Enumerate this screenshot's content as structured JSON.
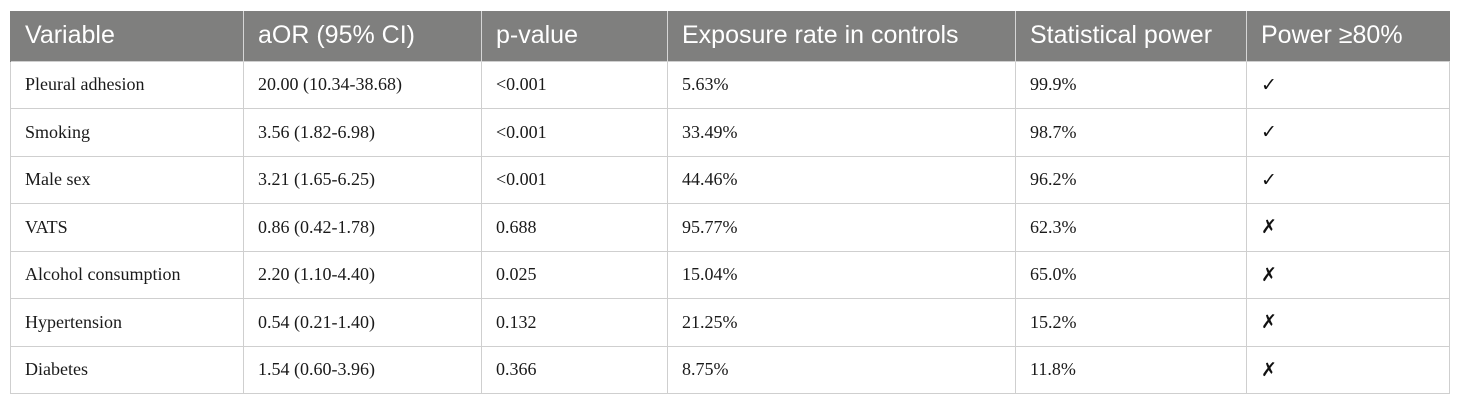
{
  "table": {
    "headers": [
      "Variable",
      "aOR (95% CI)",
      "p-value",
      "Exposure rate in controls",
      "Statistical power",
      "Power ≥80%"
    ],
    "rows": [
      [
        "Pleural adhesion",
        "20.00 (10.34-38.68)",
        "<0.001",
        "5.63%",
        "99.9%",
        "✓"
      ],
      [
        "Smoking",
        "3.56 (1.82-6.98)",
        "<0.001",
        "33.49%",
        "98.7%",
        "✓"
      ],
      [
        "Male sex",
        "3.21 (1.65-6.25)",
        "<0.001",
        "44.46%",
        "96.2%",
        "✓"
      ],
      [
        "VATS",
        "0.86 (0.42-1.78)",
        "0.688",
        "95.77%",
        "62.3%",
        "✗"
      ],
      [
        "Alcohol consumption",
        "2.20 (1.10-4.40)",
        "0.025",
        "15.04%",
        "65.0%",
        "✗"
      ],
      [
        "Hypertension",
        "0.54 (0.21-1.40)",
        "0.132",
        "21.25%",
        "15.2%",
        "✗"
      ],
      [
        "Diabetes",
        "1.54 (0.60-3.96)",
        "0.366",
        "8.75%",
        "11.8%",
        "✗"
      ]
    ]
  },
  "colors": {
    "header_bg": "#7f7f7e",
    "header_text": "#ffffff",
    "grid": "#cfcfcf"
  }
}
